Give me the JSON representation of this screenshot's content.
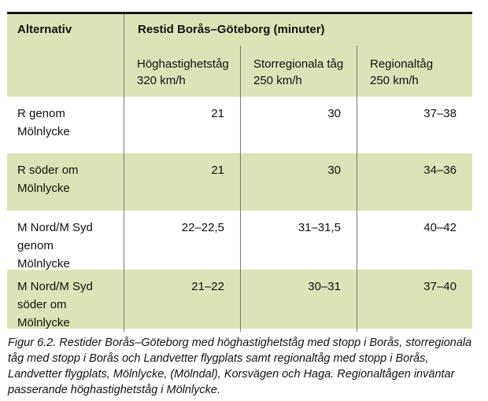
{
  "table": {
    "col1_header": "Alternativ",
    "group_header": "Restid Borås–Göteborg (minuter)",
    "columns": [
      {
        "label": "Höghastighetståg\n320 km/h"
      },
      {
        "label": "Storregionala tåg\n250 km/h"
      },
      {
        "label": "Regionaltåg\n250 km/h"
      }
    ],
    "rows": [
      {
        "label": "R genom\nMölnlycke",
        "values": [
          "21",
          "30",
          "37–38"
        ]
      },
      {
        "label": "R söder om\nMölnlycke",
        "values": [
          "21",
          "30",
          "34–36"
        ]
      },
      {
        "label": "M Nord/M Syd\ngenom\nMölnlycke",
        "values": [
          "22–22,5",
          "31–31,5",
          "40–42"
        ]
      },
      {
        "label": "M Nord/M Syd\nsöder om\nMölnlycke",
        "values": [
          "21–22",
          "30–31",
          "37–40"
        ]
      }
    ]
  },
  "caption": {
    "text": "Figur 6.2.  Restider Borås–Göteborg med höghastighetståg med stopp i Borås, storregionala\ntåg med stopp i Borås och Landvetter flygplats samt regionaltåg med stopp i Borås,\nLandvetter flygplats, Mölnlycke, (Mölndal), Korsvägen och Haga. Regionaltågen inväntar\npasserande höghastighetståg i Mölnlycke."
  },
  "colors": {
    "row_green": "#dde3b7",
    "row_white": "#ffffff",
    "divider_gray": "#777777",
    "top_border_black": "#161616"
  }
}
